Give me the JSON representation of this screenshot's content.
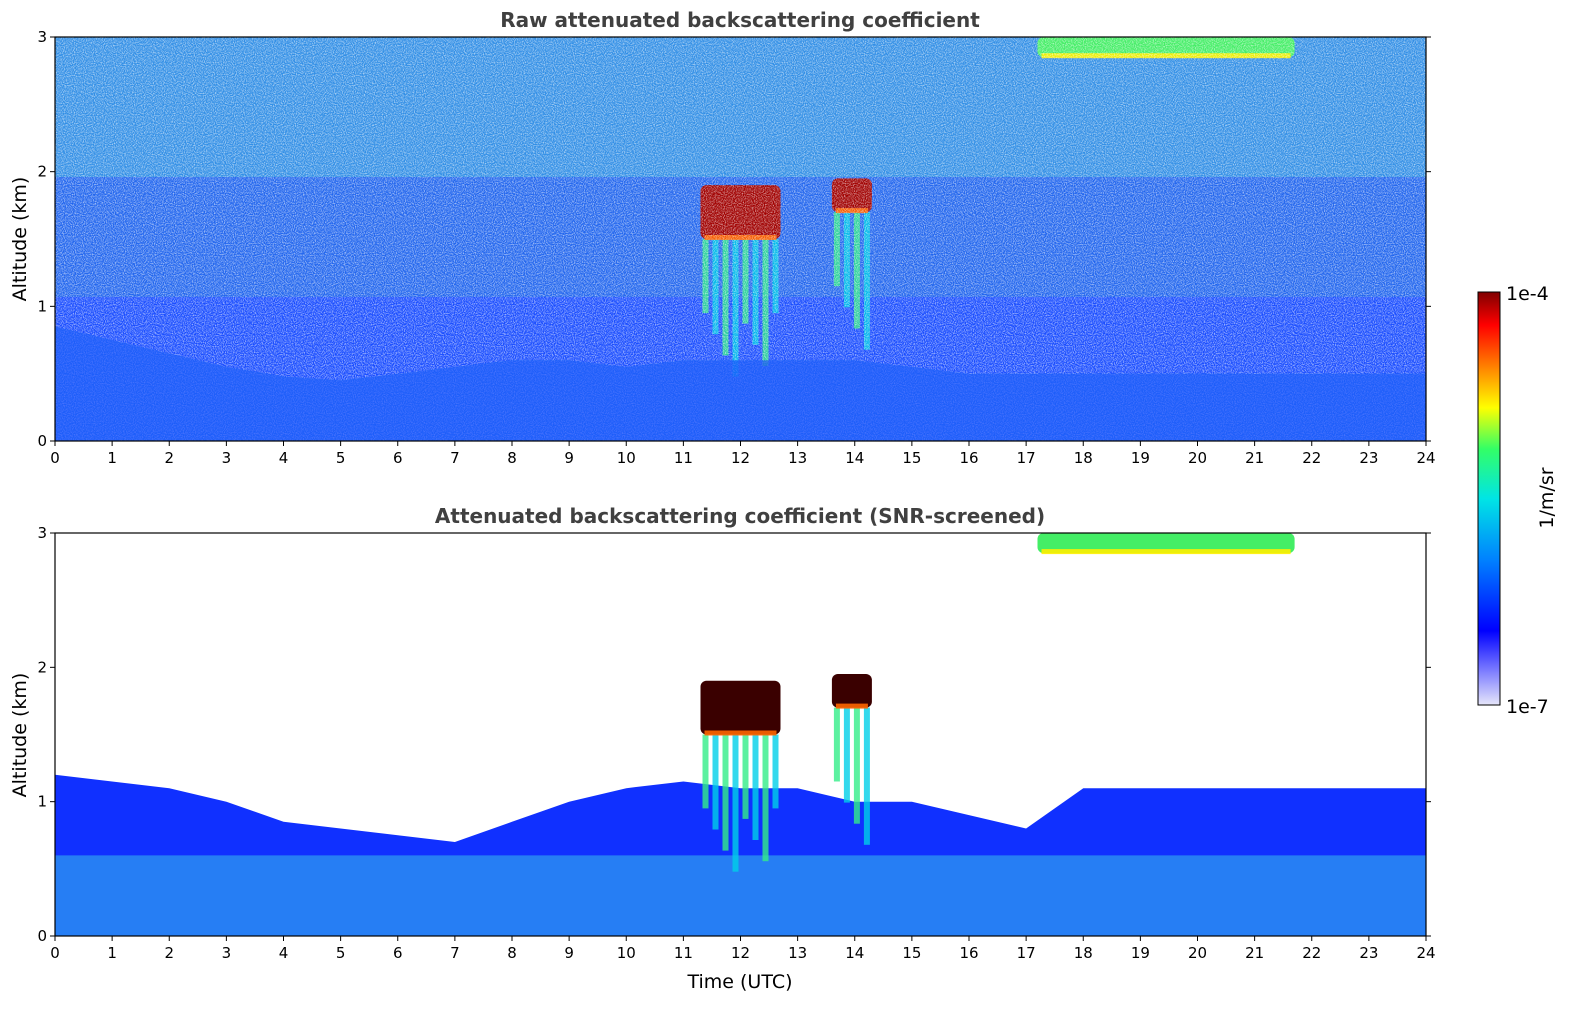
{
  "chart_data": [
    {
      "type": "heatmap",
      "title": "Raw attenuated backscattering coefficient",
      "xlabel": "",
      "ylabel": "Altitude (km)",
      "xlim": [
        0,
        24
      ],
      "ylim": [
        0,
        3
      ],
      "xticks": [
        0,
        1,
        2,
        3,
        4,
        5,
        6,
        7,
        8,
        9,
        10,
        11,
        12,
        13,
        14,
        15,
        16,
        17,
        18,
        19,
        20,
        21,
        22,
        23,
        24
      ],
      "yticks": [
        0,
        1,
        2,
        3
      ],
      "layers": [
        {
          "name": "boundary layer aerosol",
          "x_range": [
            0,
            24
          ],
          "top_km": [
            0.85,
            0.75,
            0.65,
            0.55,
            0.48,
            0.45,
            0.5,
            0.55,
            0.6,
            0.6,
            0.55,
            0.6,
            0.6,
            0.6,
            0.6,
            0.55,
            0.5,
            0.5,
            0.5,
            0.5,
            0.5,
            0.5,
            0.5,
            0.5,
            0.5
          ]
        },
        {
          "name": "clouds",
          "x_range": [
            11.3,
            12.7
          ],
          "altitude_km": [
            1.5,
            1.9
          ],
          "level": "1e-4"
        },
        {
          "name": "clouds",
          "x_range": [
            13.6,
            14.3
          ],
          "altitude_km": [
            1.7,
            1.95
          ],
          "level": "1e-4"
        },
        {
          "name": "high cloud",
          "x_range": [
            17.2,
            21.7
          ],
          "altitude_km": [
            2.85,
            3.0
          ],
          "level": "1e-5"
        }
      ]
    },
    {
      "type": "heatmap",
      "title": "Attenuated backscattering coefficient (SNR-screened)",
      "xlabel": "Time (UTC)",
      "ylabel": "Altitude (km)",
      "xlim": [
        0,
        24
      ],
      "ylim": [
        0,
        3
      ],
      "xticks": [
        0,
        1,
        2,
        3,
        4,
        5,
        6,
        7,
        8,
        9,
        10,
        11,
        12,
        13,
        14,
        15,
        16,
        17,
        18,
        19,
        20,
        21,
        22,
        23,
        24
      ],
      "yticks": [
        0,
        1,
        2,
        3
      ],
      "layers": [
        {
          "name": "boundary layer aerosol",
          "x_range": [
            0,
            24
          ],
          "top_km": [
            1.2,
            1.15,
            1.1,
            1.0,
            0.85,
            0.8,
            0.75,
            0.7,
            0.85,
            1.0,
            1.1,
            1.15,
            1.1,
            1.1,
            1.0,
            1.0,
            0.9,
            0.8,
            1.1,
            1.1,
            1.1,
            1.1,
            1.1,
            1.1,
            1.1
          ]
        },
        {
          "name": "clouds",
          "x_range": [
            11.3,
            12.7
          ],
          "altitude_km": [
            1.5,
            1.9
          ],
          "level": "1e-4"
        },
        {
          "name": "clouds",
          "x_range": [
            13.6,
            14.3
          ],
          "altitude_km": [
            1.7,
            1.95
          ],
          "level": "1e-4"
        },
        {
          "name": "high cloud",
          "x_range": [
            17.2,
            21.7
          ],
          "altitude_km": [
            2.85,
            3.0
          ],
          "level": "1e-5"
        }
      ]
    }
  ],
  "colorbar": {
    "min_label": "1e-7",
    "max_label": "1e-4",
    "unit_label": "1/m/sr",
    "colors": [
      "#e6e6fa",
      "#0000ff",
      "#0080ff",
      "#00e5e5",
      "#33ff66",
      "#ffff00",
      "#ff8000",
      "#ff0000",
      "#800000"
    ]
  }
}
